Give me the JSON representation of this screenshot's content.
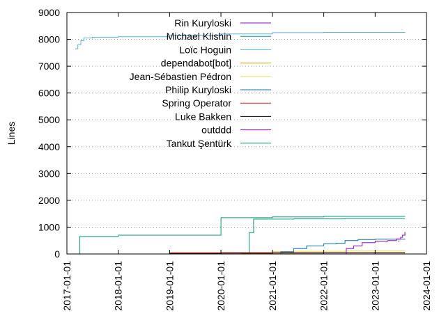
{
  "chart_data": {
    "type": "line",
    "title": "",
    "xlabel": "",
    "ylabel": "Lines",
    "x_type": "date",
    "xlim": [
      "2017-01-01",
      "2024-01-01"
    ],
    "ylim": [
      0,
      9000
    ],
    "x_ticks": [
      "2017-01-01",
      "2018-01-01",
      "2019-01-01",
      "2020-01-01",
      "2021-01-01",
      "2022-01-01",
      "2023-01-01",
      "2024-01-01"
    ],
    "y_ticks": [
      0,
      1000,
      2000,
      3000,
      4000,
      5000,
      6000,
      7000,
      8000,
      9000
    ],
    "grid": "y-dotted",
    "legend_position": "top-center",
    "series": [
      {
        "name": "Rin Kuryloski",
        "color": "#9400d3",
        "points": [
          [
            "2023-06-15",
            480
          ],
          [
            "2023-06-20",
            500
          ]
        ]
      },
      {
        "name": "Michael Klishin",
        "color": "#009e73",
        "points": [
          [
            "2020-06-01",
            0
          ],
          [
            "2020-06-30",
            0
          ],
          [
            "2020-07-20",
            800
          ],
          [
            "2020-08-20",
            1300
          ],
          [
            "2021-06-01",
            1310
          ],
          [
            "2022-06-01",
            1320
          ],
          [
            "2023-08-01",
            1320
          ]
        ]
      },
      {
        "name": "Loïc Hoguin",
        "color": "#56b4e9",
        "points": [
          [
            "2017-03-01",
            7650
          ],
          [
            "2017-03-20",
            7800
          ],
          [
            "2017-04-10",
            7950
          ],
          [
            "2017-05-01",
            8050
          ],
          [
            "2017-07-01",
            8080
          ],
          [
            "2018-01-01",
            8100
          ],
          [
            "2019-01-01",
            8130
          ],
          [
            "2020-01-01",
            8200
          ],
          [
            "2021-01-01",
            8250
          ],
          [
            "2022-01-01",
            8260
          ],
          [
            "2023-08-01",
            8270
          ]
        ]
      },
      {
        "name": "dependabot[bot]",
        "color": "#e69f00",
        "points": [
          [
            "2019-01-01",
            0
          ],
          [
            "2020-06-01",
            20
          ],
          [
            "2021-01-01",
            30
          ],
          [
            "2022-01-01",
            40
          ],
          [
            "2023-08-01",
            50
          ]
        ]
      },
      {
        "name": "Jean-Sébastien Pédron",
        "color": "#f0e442",
        "points": [
          [
            "2020-01-01",
            0
          ],
          [
            "2020-09-01",
            40
          ],
          [
            "2021-01-01",
            90
          ],
          [
            "2021-06-01",
            100
          ],
          [
            "2022-06-01",
            120
          ],
          [
            "2023-08-01",
            130
          ]
        ]
      },
      {
        "name": "Philip Kuryloski",
        "color": "#0072b2",
        "points": [
          [
            "2021-01-01",
            0
          ],
          [
            "2021-03-01",
            80
          ],
          [
            "2021-06-01",
            200
          ],
          [
            "2021-09-01",
            300
          ],
          [
            "2022-01-01",
            380
          ],
          [
            "2022-04-01",
            400
          ],
          [
            "2022-06-01",
            500
          ],
          [
            "2022-09-01",
            540
          ],
          [
            "2023-01-01",
            550
          ],
          [
            "2023-08-01",
            560
          ]
        ]
      },
      {
        "name": "Spring Operator",
        "color": "#e51e10",
        "points": [
          [
            "2019-01-01",
            50
          ],
          [
            "2023-08-01",
            50
          ]
        ]
      },
      {
        "name": "Luke Bakken",
        "color": "#000000",
        "points": [
          [
            "2018-07-01",
            0
          ],
          [
            "2019-01-01",
            20
          ],
          [
            "2020-01-01",
            30
          ],
          [
            "2021-01-01",
            40
          ],
          [
            "2023-08-01",
            40
          ]
        ]
      },
      {
        "name": "outddd",
        "color": "#9400d3",
        "points": [
          [
            "2022-06-01",
            0
          ],
          [
            "2022-06-10",
            200
          ],
          [
            "2022-08-01",
            300
          ],
          [
            "2022-10-01",
            420
          ],
          [
            "2023-01-01",
            480
          ],
          [
            "2023-04-01",
            500
          ],
          [
            "2023-06-01",
            560
          ],
          [
            "2023-07-01",
            620
          ],
          [
            "2023-07-15",
            700
          ],
          [
            "2023-08-01",
            820
          ]
        ]
      },
      {
        "name": "Tankut Şentürk",
        "color": "#009e73",
        "points": [
          [
            "2017-04-01",
            0
          ],
          [
            "2017-04-02",
            650
          ],
          [
            "2018-01-01",
            660
          ],
          [
            "2018-01-02",
            700
          ],
          [
            "2019-01-01",
            700
          ],
          [
            "2019-12-31",
            700
          ],
          [
            "2020-01-01",
            1350
          ],
          [
            "2021-01-01",
            1380
          ],
          [
            "2022-01-01",
            1400
          ],
          [
            "2023-08-01",
            1410
          ]
        ]
      }
    ]
  }
}
